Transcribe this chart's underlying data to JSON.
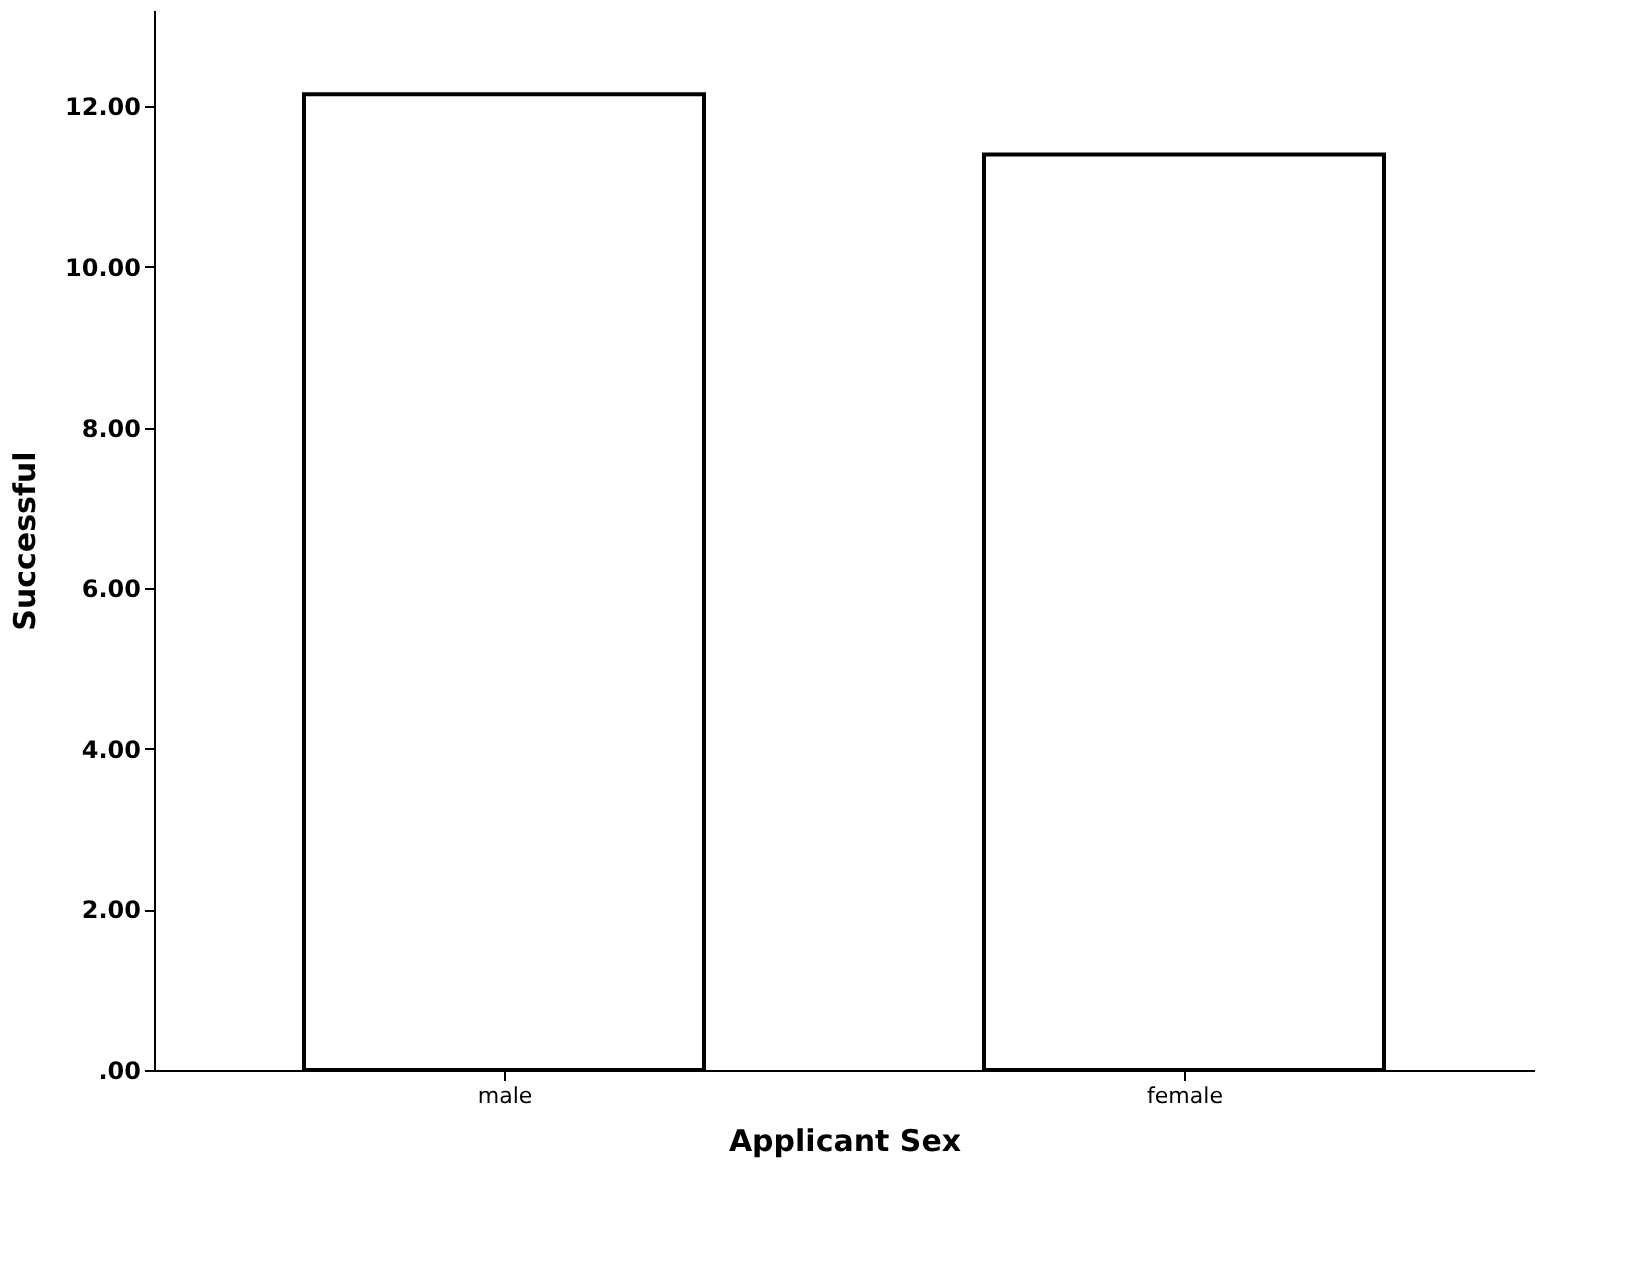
{
  "chart_data": {
    "type": "bar",
    "xlabel": "Applicant Sex",
    "ylabel": "Successful",
    "categories": [
      "male",
      "female"
    ],
    "values": [
      12.15,
      11.4
    ],
    "color": "#ffffff",
    "ylim": [
      0,
      13.2
    ],
    "yticks": [
      {
        "value": 0,
        "label": ".00"
      },
      {
        "value": 2,
        "label": "2.00"
      },
      {
        "value": 4,
        "label": "4.00"
      },
      {
        "value": 6,
        "label": "6.00"
      },
      {
        "value": 8,
        "label": "8.00"
      },
      {
        "value": 10,
        "label": "10.00"
      },
      {
        "value": 12,
        "label": "12.00"
      }
    ],
    "grid": false
  }
}
